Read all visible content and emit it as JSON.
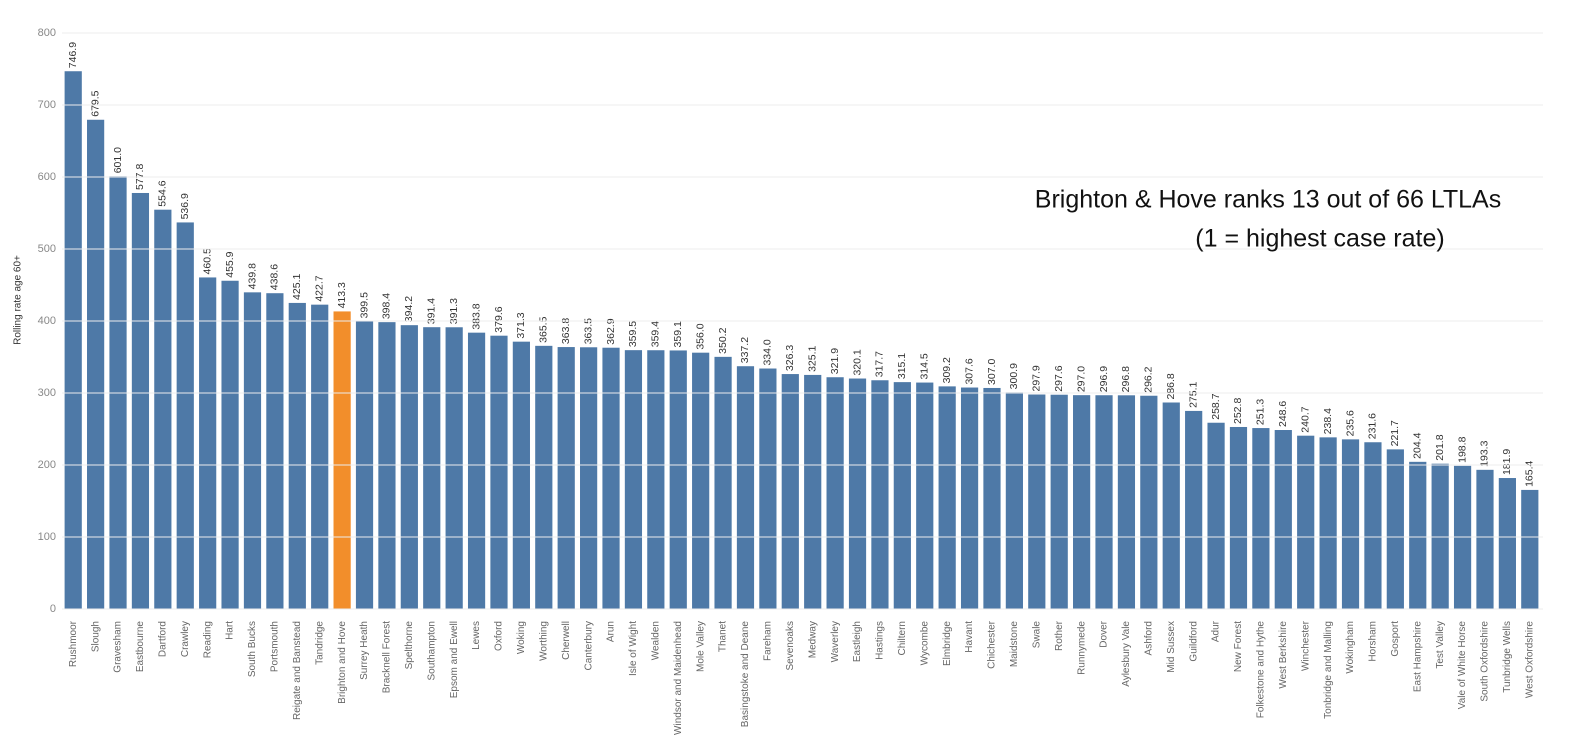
{
  "chart_data": {
    "type": "bar",
    "y_label": "Rolling rate age 60+",
    "annotations": [
      "Brighton & Hove ranks 13 out of 66 LTLAs",
      "(1 = highest case rate)"
    ],
    "categories": [
      "Rushmoor",
      "Slough",
      "Gravesham",
      "Eastbourne",
      "Dartford",
      "Crawley",
      "Reading",
      "Hart",
      "South Bucks",
      "Portsmouth",
      "Reigate and Banstead",
      "Tandridge",
      "Brighton and Hove",
      "Surrey Heath",
      "Bracknell Forest",
      "Spelthorne",
      "Southampton",
      "Epsom and Ewell",
      "Lewes",
      "Oxford",
      "Woking",
      "Worthing",
      "Cherwell",
      "Canterbury",
      "Arun",
      "Isle of Wight",
      "Wealden",
      "Windsor and Maidenhead",
      "Mole Valley",
      "Thanet",
      "Basingstoke and Deane",
      "Fareham",
      "Sevenoaks",
      "Medway",
      "Waverley",
      "Eastleigh",
      "Hastings",
      "Chiltern",
      "Wycombe",
      "Elmbridge",
      "Havant",
      "Chichester",
      "Maidstone",
      "Swale",
      "Rother",
      "Runnymede",
      "Dover",
      "Aylesbury Vale",
      "Ashford",
      "Mid Sussex",
      "Guildford",
      "Adur",
      "New Forest",
      "Folkestone and Hythe",
      "West Berkshire",
      "Winchester",
      "Tonbridge and Malling",
      "Wokingham",
      "Horsham",
      "Gosport",
      "East Hampshire",
      "Test Valley",
      "Vale of White Horse",
      "South Oxfordshire",
      "Tunbridge Wells",
      "West Oxfordshire"
    ],
    "values": [
      746.9,
      679.5,
      601.0,
      577.8,
      554.6,
      536.9,
      460.5,
      455.9,
      439.8,
      438.6,
      425.1,
      422.7,
      413.3,
      399.5,
      398.4,
      394.2,
      391.4,
      391.3,
      383.8,
      379.6,
      371.3,
      365.5,
      363.8,
      363.5,
      362.9,
      359.5,
      359.4,
      359.1,
      356.0,
      350.2,
      337.2,
      334.0,
      326.3,
      325.1,
      321.9,
      320.1,
      317.7,
      315.1,
      314.5,
      309.2,
      307.6,
      307.0,
      300.9,
      297.9,
      297.6,
      297.0,
      296.9,
      296.8,
      296.2,
      286.8,
      275.1,
      258.7,
      252.8,
      251.3,
      248.6,
      240.7,
      238.4,
      235.6,
      231.6,
      221.7,
      204.4,
      201.8,
      198.8,
      193.3,
      181.9,
      165.4
    ],
    "value_labels": [
      "746.9",
      "679.5",
      "601.0",
      "577.8",
      "554.6",
      "536.9",
      "460.5",
      "455.9",
      "439.8",
      "438.6",
      "425.1",
      "422.7",
      "413.3",
      "399.5",
      "398.4",
      "394.2",
      "391.4",
      "391.3",
      "383.8",
      "379.6",
      "371.3",
      "365.5",
      "363.8",
      "363.5",
      "362.9",
      "359.5",
      "359.4",
      "359.1",
      "356.0",
      "350.2",
      "337.2",
      "334.0",
      "326.3",
      "325.1",
      "321.9",
      "320.1",
      "317.7",
      "315.1",
      "314.5",
      "309.2",
      "307.6",
      "307.0",
      "300.9",
      "297.9",
      "297.6",
      "297.0",
      "296.9",
      "296.8",
      "296.2",
      "286.8",
      "275.1",
      "258.7",
      "252.8",
      "251.3",
      "248.6",
      "240.7",
      "238.4",
      "235.6",
      "231.6",
      "221.7",
      "204.4",
      "201.8",
      "198.8",
      "193.3",
      "181.9",
      "165.4"
    ],
    "colors": [
      "#4e79a7",
      "#4e79a7",
      "#4e79a7",
      "#4e79a7",
      "#4e79a7",
      "#4e79a7",
      "#4e79a7",
      "#4e79a7",
      "#4e79a7",
      "#4e79a7",
      "#4e79a7",
      "#4e79a7",
      "#f28e2b",
      "#4e79a7",
      "#4e79a7",
      "#4e79a7",
      "#4e79a7",
      "#4e79a7",
      "#4e79a7",
      "#4e79a7",
      "#4e79a7",
      "#4e79a7",
      "#4e79a7",
      "#4e79a7",
      "#4e79a7",
      "#4e79a7",
      "#4e79a7",
      "#4e79a7",
      "#4e79a7",
      "#4e79a7",
      "#4e79a7",
      "#4e79a7",
      "#4e79a7",
      "#4e79a7",
      "#4e79a7",
      "#4e79a7",
      "#4e79a7",
      "#4e79a7",
      "#4e79a7",
      "#4e79a7",
      "#4e79a7",
      "#4e79a7",
      "#4e79a7",
      "#4e79a7",
      "#4e79a7",
      "#4e79a7",
      "#4e79a7",
      "#4e79a7",
      "#4e79a7",
      "#4e79a7",
      "#4e79a7",
      "#4e79a7",
      "#4e79a7",
      "#4e79a7",
      "#4e79a7",
      "#4e79a7",
      "#4e79a7",
      "#4e79a7",
      "#4e79a7",
      "#4e79a7",
      "#4e79a7",
      "#4e79a7",
      "#4e79a7",
      "#4e79a7",
      "#4e79a7",
      "#4e79a7"
    ],
    "ylim": [
      0,
      800
    ],
    "yticks": [
      0,
      100,
      200,
      300,
      400,
      500,
      600,
      700,
      800
    ],
    "grid": true
  }
}
